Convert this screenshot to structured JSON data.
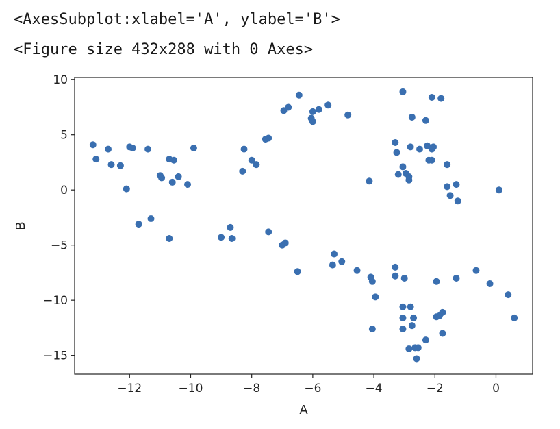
{
  "output": {
    "line1": "<AxesSubplot:xlabel='A', ylabel='B'>",
    "line2": "<Figure size 432x288 with 0 Axes>"
  },
  "chart_data": {
    "type": "scatter",
    "title": "",
    "xlabel": "A",
    "ylabel": "B",
    "xlim": [
      -13.8,
      1.2
    ],
    "ylim": [
      -16.7,
      10.2
    ],
    "xticks": [
      -12,
      -10,
      -8,
      -6,
      -4,
      -2,
      0
    ],
    "yticks": [
      -15,
      -10,
      -5,
      0,
      5,
      10
    ],
    "xtick_labels": [
      "−12",
      "−10",
      "−8",
      "−6",
      "−4",
      "−2",
      "0"
    ],
    "ytick_labels": [
      "−15",
      "−10",
      "−5",
      "0",
      "5",
      "10"
    ],
    "grid": false,
    "marker_color": "#3a6fb0",
    "points": [
      [
        -13.2,
        4.1
      ],
      [
        -13.1,
        2.8
      ],
      [
        -12.7,
        3.7
      ],
      [
        -12.6,
        2.3
      ],
      [
        -12.3,
        2.2
      ],
      [
        -12.1,
        0.1
      ],
      [
        -12.0,
        3.9
      ],
      [
        -11.9,
        3.8
      ],
      [
        -11.7,
        -3.1
      ],
      [
        -11.4,
        3.7
      ],
      [
        -11.3,
        -2.6
      ],
      [
        -11.0,
        1.3
      ],
      [
        -10.95,
        1.1
      ],
      [
        -10.7,
        2.8
      ],
      [
        -10.6,
        0.7
      ],
      [
        -10.55,
        2.7
      ],
      [
        -10.4,
        1.2
      ],
      [
        -10.1,
        0.5
      ],
      [
        -9.9,
        3.8
      ],
      [
        -10.7,
        -4.4
      ],
      [
        -9.0,
        -4.3
      ],
      [
        -8.7,
        -3.4
      ],
      [
        -8.65,
        -4.4
      ],
      [
        -8.3,
        1.7
      ],
      [
        -8.25,
        3.7
      ],
      [
        -8.0,
        2.7
      ],
      [
        -7.85,
        2.3
      ],
      [
        -7.55,
        4.6
      ],
      [
        -7.45,
        4.7
      ],
      [
        -7.45,
        -3.8
      ],
      [
        -7.0,
        -5.0
      ],
      [
        -6.9,
        -4.8
      ],
      [
        -6.95,
        7.2
      ],
      [
        -6.8,
        7.5
      ],
      [
        -6.5,
        -7.4
      ],
      [
        -6.45,
        8.6
      ],
      [
        -6.05,
        6.5
      ],
      [
        -6.0,
        6.2
      ],
      [
        -6.0,
        7.1
      ],
      [
        -5.8,
        7.3
      ],
      [
        -5.5,
        7.7
      ],
      [
        -5.3,
        -5.8
      ],
      [
        -5.35,
        -6.8
      ],
      [
        -5.05,
        -6.5
      ],
      [
        -4.85,
        6.8
      ],
      [
        -4.55,
        -7.3
      ],
      [
        -4.15,
        0.8
      ],
      [
        -4.1,
        -7.9
      ],
      [
        -4.05,
        -8.3
      ],
      [
        -3.95,
        -9.7
      ],
      [
        -4.05,
        -12.6
      ],
      [
        -3.3,
        -7.0
      ],
      [
        -3.3,
        -7.8
      ],
      [
        -3.3,
        4.3
      ],
      [
        -3.25,
        3.4
      ],
      [
        -3.2,
        1.4
      ],
      [
        -3.05,
        8.9
      ],
      [
        -3.05,
        2.1
      ],
      [
        -3.0,
        -8.0
      ],
      [
        -2.95,
        1.5
      ],
      [
        -2.85,
        0.9
      ],
      [
        -2.85,
        1.2
      ],
      [
        -2.8,
        3.9
      ],
      [
        -3.05,
        -10.6
      ],
      [
        -3.05,
        -11.6
      ],
      [
        -3.05,
        -12.6
      ],
      [
        -2.8,
        -10.6
      ],
      [
        -2.75,
        6.6
      ],
      [
        -2.75,
        -12.3
      ],
      [
        -2.85,
        -14.4
      ],
      [
        -2.7,
        -11.6
      ],
      [
        -2.65,
        -14.3
      ],
      [
        -2.55,
        -14.3
      ],
      [
        -2.6,
        -15.3
      ],
      [
        -2.5,
        3.7
      ],
      [
        -2.3,
        6.3
      ],
      [
        -2.3,
        -13.6
      ],
      [
        -2.25,
        4.0
      ],
      [
        -2.2,
        2.7
      ],
      [
        -2.1,
        8.4
      ],
      [
        -2.1,
        2.7
      ],
      [
        -2.1,
        3.7
      ],
      [
        -2.05,
        3.9
      ],
      [
        -1.95,
        -8.3
      ],
      [
        -1.95,
        -11.5
      ],
      [
        -1.85,
        -11.4
      ],
      [
        -1.8,
        8.3
      ],
      [
        -1.75,
        -11.1
      ],
      [
        -1.75,
        -13.0
      ],
      [
        -1.6,
        2.3
      ],
      [
        -1.6,
        0.3
      ],
      [
        -1.5,
        -0.5
      ],
      [
        -1.3,
        0.5
      ],
      [
        -1.25,
        -1.0
      ],
      [
        -1.3,
        -8.0
      ],
      [
        -0.65,
        -7.3
      ],
      [
        -0.2,
        -8.5
      ],
      [
        0.1,
        0.0
      ],
      [
        0.4,
        -9.5
      ],
      [
        0.6,
        -11.6
      ]
    ]
  }
}
